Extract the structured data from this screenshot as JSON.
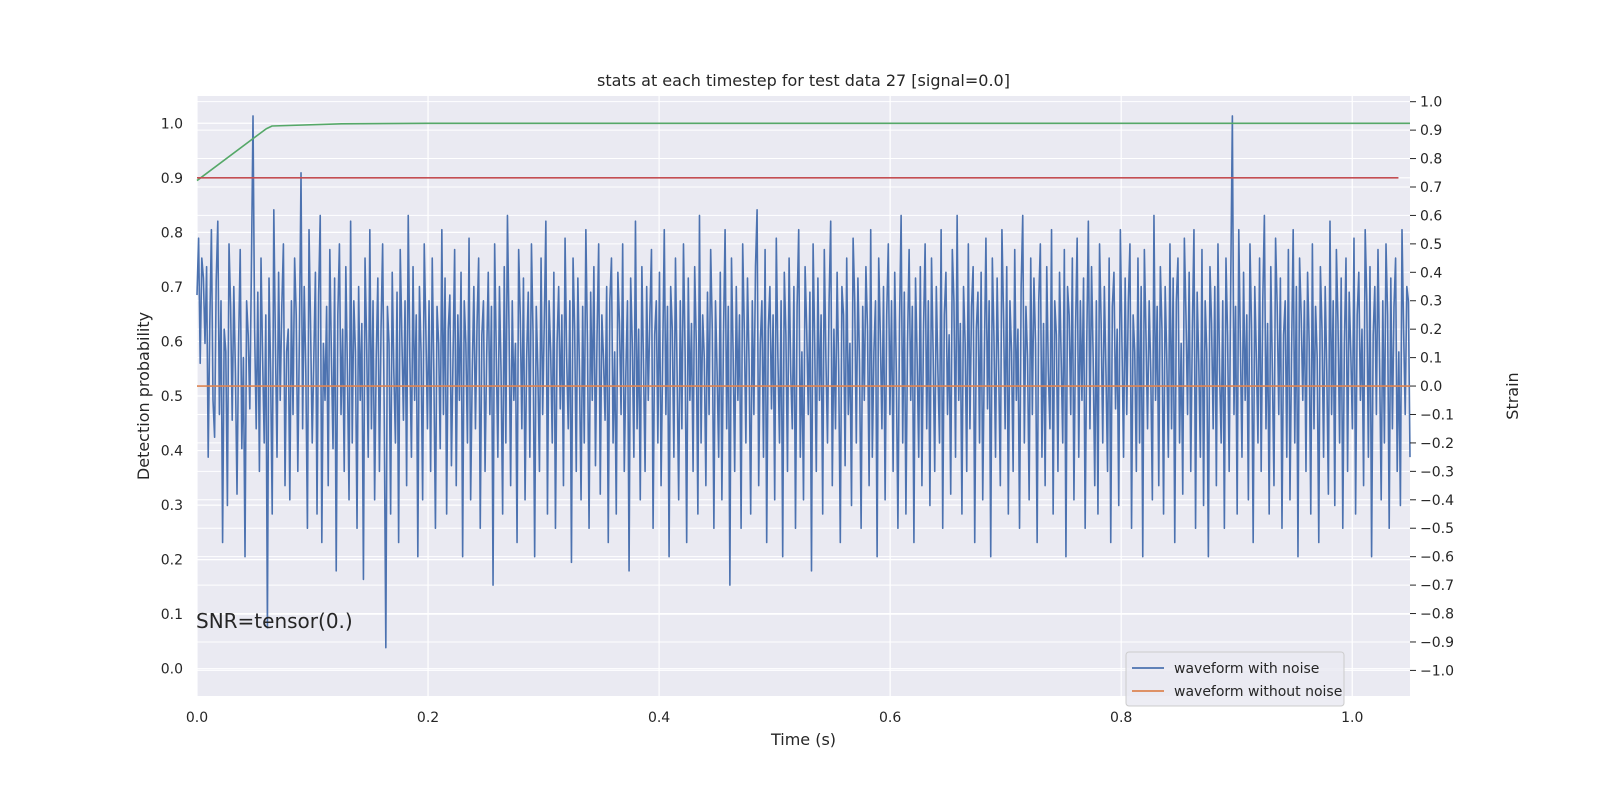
{
  "chart_data": {
    "type": "line",
    "title": "stats at each timestep for test data 27 [signal=0.0]",
    "xlabel": "Time (s)",
    "ylabel": "Detection probability",
    "y2label": "Strain",
    "xlim": [
      0.0,
      1.05
    ],
    "ylim": [
      -0.05,
      1.05
    ],
    "y2lim": [
      -1.09,
      1.02
    ],
    "grid": true,
    "xticks": [
      0.0,
      0.2,
      0.4,
      0.6,
      0.8,
      1.0
    ],
    "xtick_labels": [
      "0.0",
      "0.2",
      "0.4",
      "0.6",
      "0.8",
      "1.0"
    ],
    "yticks": [
      0.0,
      0.1,
      0.2,
      0.3,
      0.4,
      0.5,
      0.6,
      0.7,
      0.8,
      0.9,
      1.0
    ],
    "ytick_labels": [
      "0.0",
      "0.1",
      "0.2",
      "0.3",
      "0.4",
      "0.5",
      "0.6",
      "0.7",
      "0.8",
      "0.9",
      "1.0"
    ],
    "y2ticks": [
      -1.0,
      -0.9,
      -0.8,
      -0.7,
      -0.6,
      -0.5,
      -0.4,
      -0.3,
      -0.2,
      -0.1,
      0.0,
      0.1,
      0.2,
      0.3,
      0.4,
      0.5,
      0.6,
      0.7,
      0.8,
      0.9,
      1.0
    ],
    "y2tick_labels": [
      "−1.0",
      "−0.9",
      "−0.8",
      "−0.7",
      "−0.6",
      "−0.5",
      "−0.4",
      "−0.3",
      "−0.2",
      "−0.1",
      "0.0",
      "0.1",
      "0.2",
      "0.3",
      "0.4",
      "0.5",
      "0.6",
      "0.7",
      "0.8",
      "0.9",
      "1.0"
    ],
    "annotation": "SNR=tensor(0.)",
    "legend_placement": "lower-right",
    "series": [
      {
        "name": "waveform with noise",
        "axis": "right",
        "color": "#4c72b0",
        "x_start": 0.0,
        "x_end": 1.05,
        "values": [
          0.32,
          0.52,
          0.08,
          0.45,
          0.38,
          0.15,
          0.42,
          -0.25,
          0.22,
          0.55,
          -0.05,
          -0.18,
          0.37,
          0.58,
          -0.1,
          0.3,
          -0.55,
          0.2,
          0.12,
          -0.42,
          0.5,
          0.28,
          -0.12,
          0.35,
          0.05,
          -0.38,
          0.15,
          0.48,
          -0.22,
          0.1,
          -0.6,
          0.3,
          0.18,
          -0.08,
          0.42,
          0.95,
          0.2,
          -0.15,
          0.33,
          -0.3,
          0.45,
          0.1,
          -0.2,
          0.25,
          -0.85,
          0.38,
          0.05,
          -0.45,
          0.62,
          0.15,
          -0.25,
          0.4,
          -0.05,
          0.28,
          0.5,
          -0.35,
          0.12,
          0.2,
          -0.4,
          0.3,
          -0.1,
          0.45,
          0.25,
          -0.3,
          0.18,
          0.75,
          -0.15,
          0.35,
          0.05,
          -0.5,
          0.55,
          0.2,
          -0.2,
          0.1,
          0.4,
          -0.45,
          0.32,
          0.6,
          -0.55,
          0.15,
          -0.05,
          0.28,
          -0.35,
          0.48,
          0.1,
          -0.22,
          0.38,
          -0.65,
          0.25,
          0.5,
          -0.1,
          0.2,
          -0.3,
          0.42,
          0.05,
          -0.4,
          0.58,
          -0.2,
          0.3,
          0.12,
          -0.5,
          0.35,
          -0.05,
          0.22,
          -0.68,
          0.45,
          0.15,
          -0.25,
          0.55,
          -0.15,
          0.3,
          -0.4,
          0.1,
          0.38,
          -0.3,
          0.2,
          0.5,
          -0.1,
          -0.92,
          0.28,
          0.15,
          -0.45,
          0.4,
          0.05,
          -0.2,
          0.33,
          -0.55,
          0.48,
          0.18,
          -0.12,
          0.3,
          -0.35,
          0.6,
          0.1,
          -0.25,
          0.42,
          -0.05,
          0.25,
          -0.6,
          0.35,
          0.12,
          -0.4,
          0.5,
          0.2,
          -0.15,
          0.3,
          -0.3,
          0.45,
          0.05,
          -0.5,
          0.28,
          0.15,
          -0.22,
          0.55,
          -0.1,
          0.38,
          -0.45,
          0.2,
          0.32,
          -0.28,
          0.1,
          0.48,
          -0.35,
          0.25,
          -0.05,
          0.4,
          -0.6,
          0.3,
          0.15,
          -0.2,
          0.52,
          -0.4,
          0.05,
          0.35,
          -0.15,
          0.22,
          0.45,
          -0.5,
          0.18,
          0.3,
          -0.3,
          0.1,
          0.4,
          -0.1,
          0.28,
          -0.7,
          0.5,
          0.12,
          -0.25,
          0.35,
          0.05,
          -0.45,
          0.42,
          -0.2,
          0.6,
          0.2,
          -0.35,
          0.3,
          -0.05,
          0.15,
          -0.55,
          0.48,
          0.25,
          -0.15,
          0.38,
          -0.4,
          0.1,
          0.33,
          -0.25,
          0.5,
          0.18,
          -0.6,
          0.28,
          0.05,
          -0.3,
          0.45,
          -0.1,
          0.22,
          0.58,
          -0.45,
          0.3,
          0.12,
          -0.2,
          0.4,
          -0.5,
          0.15,
          0.35,
          -0.08,
          0.25,
          -0.35,
          0.52,
          0.1,
          -0.15,
          0.3,
          -0.62,
          0.45,
          0.2,
          -0.3,
          0.38,
          0.05,
          -0.4,
          0.28,
          -0.2,
          0.55,
          0.15,
          -0.5,
          0.33,
          -0.05,
          0.42,
          -0.28,
          0.18,
          0.5,
          -0.38,
          0.25,
          0.1,
          -0.12,
          0.35,
          -0.55,
          0.3,
          0.45,
          -0.2,
          0.12,
          -0.45,
          0.4,
          0.22,
          -0.1,
          0.5,
          -0.3,
          0.05,
          0.3,
          -0.65,
          0.38,
          0.15,
          -0.25,
          0.58,
          -0.15,
          0.2,
          -0.4,
          0.42,
          0.08,
          -0.3,
          0.35,
          -0.05,
          0.25,
          0.48,
          -0.5,
          0.18,
          0.3,
          -0.2,
          0.4,
          -0.35,
          0.1,
          0.55,
          -0.1,
          0.28,
          -0.6,
          0.35,
          0.2,
          -0.25,
          0.45,
          0.05,
          -0.4,
          0.3,
          -0.15,
          0.5,
          0.12,
          -0.55,
          0.38,
          -0.05,
          0.22,
          -0.3,
          0.42,
          0.15,
          -0.45,
          0.6,
          -0.2,
          0.25,
          0.1,
          -0.35,
          0.33,
          -0.1,
          0.48,
          0.2,
          -0.5,
          0.3,
          0.05,
          -0.25,
          0.4,
          -0.4,
          0.18,
          0.55,
          -0.15,
          0.28,
          -0.7,
          0.45,
          0.12,
          -0.3,
          0.35,
          -0.05,
          0.25,
          -0.5,
          0.5,
          0.2,
          -0.2,
          0.38,
          0.08,
          -0.45,
          0.3,
          -0.1,
          0.42,
          0.62,
          -0.35,
          0.15,
          0.3,
          -0.25,
          0.48,
          -0.55,
          0.2,
          0.35,
          -0.08,
          0.25,
          -0.4,
          0.52,
          0.1,
          -0.2,
          0.3,
          -0.6,
          0.4,
          0.18,
          -0.3,
          0.45,
          0.05,
          -0.15,
          0.35,
          -0.5,
          0.28,
          0.55,
          -0.25,
          0.12,
          -0.4,
          0.42,
          0.2,
          -0.1,
          0.33,
          -0.65,
          0.5,
          0.15,
          -0.3,
          0.38,
          -0.05,
          0.25,
          -0.45,
          0.48,
          0.1,
          -0.2,
          0.3,
          0.58,
          -0.35,
          0.2,
          -0.15,
          0.4,
          0.05,
          -0.55,
          0.35,
          0.25,
          -0.28,
          0.45,
          -0.1,
          0.15,
          -0.42,
          0.52,
          0.3,
          -0.2,
          0.38,
          0.08,
          -0.5,
          0.28,
          -0.05,
          0.42,
          0.2,
          -0.35,
          0.55,
          -0.25,
          0.12,
          0.3,
          -0.6,
          0.45,
          0.18,
          -0.15,
          0.35,
          -0.4,
          0.25,
          0.5,
          -0.1,
          0.3,
          -0.3,
          0.4,
          0.05,
          -0.5,
          0.22,
          0.6,
          -0.2,
          0.33,
          -0.45,
          0.15,
          0.48,
          -0.05,
          0.28,
          -0.55,
          0.38,
          0.1,
          -0.25,
          0.42,
          -0.35,
          0.2,
          0.5,
          -0.15,
          0.3,
          -0.42,
          0.45,
          0.12,
          -0.3,
          0.35,
          0.05,
          -0.2,
          0.55,
          -0.5,
          0.25,
          0.4,
          -0.1,
          0.18,
          -0.38,
          0.48,
          0.3,
          -0.25,
          0.6,
          -0.05,
          0.22,
          -0.45,
          0.35,
          0.15,
          -0.3,
          0.5,
          -0.15,
          0.28,
          0.42,
          -0.55,
          0.2,
          0.33,
          -0.2,
          0.4,
          -0.4,
          0.1,
          0.52,
          -0.08,
          0.3,
          -0.6,
          0.45,
          0.18,
          -0.25,
          0.38,
          0.05,
          -0.35,
          0.55,
          0.25,
          -0.15,
          0.42,
          -0.45,
          0.3,
          0.12,
          -0.3,
          0.48,
          -0.05,
          0.2,
          -0.5,
          0.35,
          0.6,
          -0.2,
          0.28,
          0.1,
          -0.4,
          0.45,
          -0.1,
          0.38,
          0.15,
          -0.55,
          0.3,
          0.5,
          -0.25,
          0.22,
          -0.35,
          0.42,
          0.05,
          -0.15,
          0.55,
          -0.45,
          0.3,
          0.18,
          -0.3,
          0.4,
          0.1,
          -0.2,
          0.48,
          -0.6,
          0.35,
          0.25,
          -0.1,
          0.45,
          -0.4,
          0.2,
          0.52,
          -0.25,
          0.3,
          -0.05,
          0.38,
          -0.5,
          0.15,
          0.58,
          -0.15,
          0.42,
          0.1,
          -0.35,
          0.3,
          -0.45,
          0.5,
          0.22,
          -0.2,
          0.35,
          0.05,
          -0.3,
          0.45,
          -0.55,
          0.28,
          0.4,
          -0.08,
          0.2,
          -0.42,
          0.55,
          0.15,
          -0.25,
          0.38,
          -0.1,
          0.3,
          0.5,
          -0.5,
          0.25,
          0.12,
          -0.3,
          0.45,
          -0.2,
          0.35,
          -0.6,
          0.48,
          0.18,
          -0.15,
          0.3,
          0.05,
          -0.4,
          0.6,
          -0.05,
          0.28,
          -0.35,
          0.42,
          0.2,
          -0.45,
          0.35,
          0.1,
          -0.25,
          0.5,
          -0.15,
          0.38,
          -0.55,
          0.3,
          0.45,
          -0.2,
          0.15,
          -0.38,
          0.52,
          0.25,
          -0.1,
          0.4,
          -0.3,
          0.2,
          0.55,
          -0.5,
          0.33,
          0.08,
          -0.25,
          0.48,
          -0.42,
          0.3,
          0.12,
          -0.6,
          0.42,
          0.22,
          -0.15,
          0.35,
          -0.35,
          0.5,
          0.05,
          -0.2,
          0.3,
          -0.5,
          0.45,
          0.18,
          -0.3,
          0.38,
          0.95,
          -0.1,
          0.28,
          -0.45,
          0.55,
          0.15,
          -0.25,
          0.4,
          -0.05,
          0.25,
          -0.4,
          0.5,
          0.2,
          -0.55,
          0.35,
          0.1,
          -0.2,
          0.45,
          -0.3,
          0.3,
          0.6,
          -0.15,
          0.22,
          -0.45,
          0.42,
          0.05,
          -0.35,
          0.52,
          0.28,
          -0.1,
          0.38,
          -0.5,
          0.18,
          0.3,
          -0.25,
          0.48,
          -0.4,
          0.12,
          0.55,
          -0.2,
          0.35,
          -0.6,
          0.45,
          0.25,
          -0.05,
          0.3,
          -0.3,
          0.4,
          0.15,
          -0.45,
          0.5,
          -0.15,
          0.28,
          0.1,
          -0.55,
          0.42,
          0.2,
          -0.25,
          0.35,
          0.05,
          -0.38,
          0.58,
          -0.1,
          0.3,
          -0.42,
          0.48,
          0.22,
          -0.2,
          0.38,
          -0.5,
          0.15,
          0.45,
          -0.3,
          0.33,
          0.12,
          -0.15,
          0.52,
          -0.45,
          0.25,
          0.4,
          -0.05,
          0.2,
          -0.35,
          0.55,
          0.3,
          -0.25,
          0.42,
          -0.6,
          0.18,
          0.35,
          -0.1,
          0.48,
          0.08,
          -0.4,
          0.3,
          -0.2,
          0.5,
          0.25,
          -0.5,
          0.38,
          -0.15,
          0.28,
          0.45,
          -0.3,
          0.12,
          -0.42,
          0.55,
          0.2,
          -0.1,
          0.35,
          0.3,
          -0.25
        ]
      },
      {
        "name": "waveform without noise",
        "axis": "right",
        "color": "#dd8452",
        "x": [
          0.0,
          1.05
        ],
        "values": [
          0.0,
          0.0
        ]
      },
      {
        "name": "",
        "axis": "left",
        "color": "#55a868",
        "x": [
          0.0,
          0.06,
          0.065,
          0.125,
          0.2,
          0.4,
          1.05
        ],
        "values": [
          0.895,
          0.99,
          0.995,
          0.999,
          1.0,
          1.0,
          1.0
        ]
      },
      {
        "name": "",
        "axis": "left",
        "color": "#c44e52",
        "x": [
          0.0,
          1.04
        ],
        "values": [
          0.9,
          0.9
        ]
      }
    ]
  }
}
